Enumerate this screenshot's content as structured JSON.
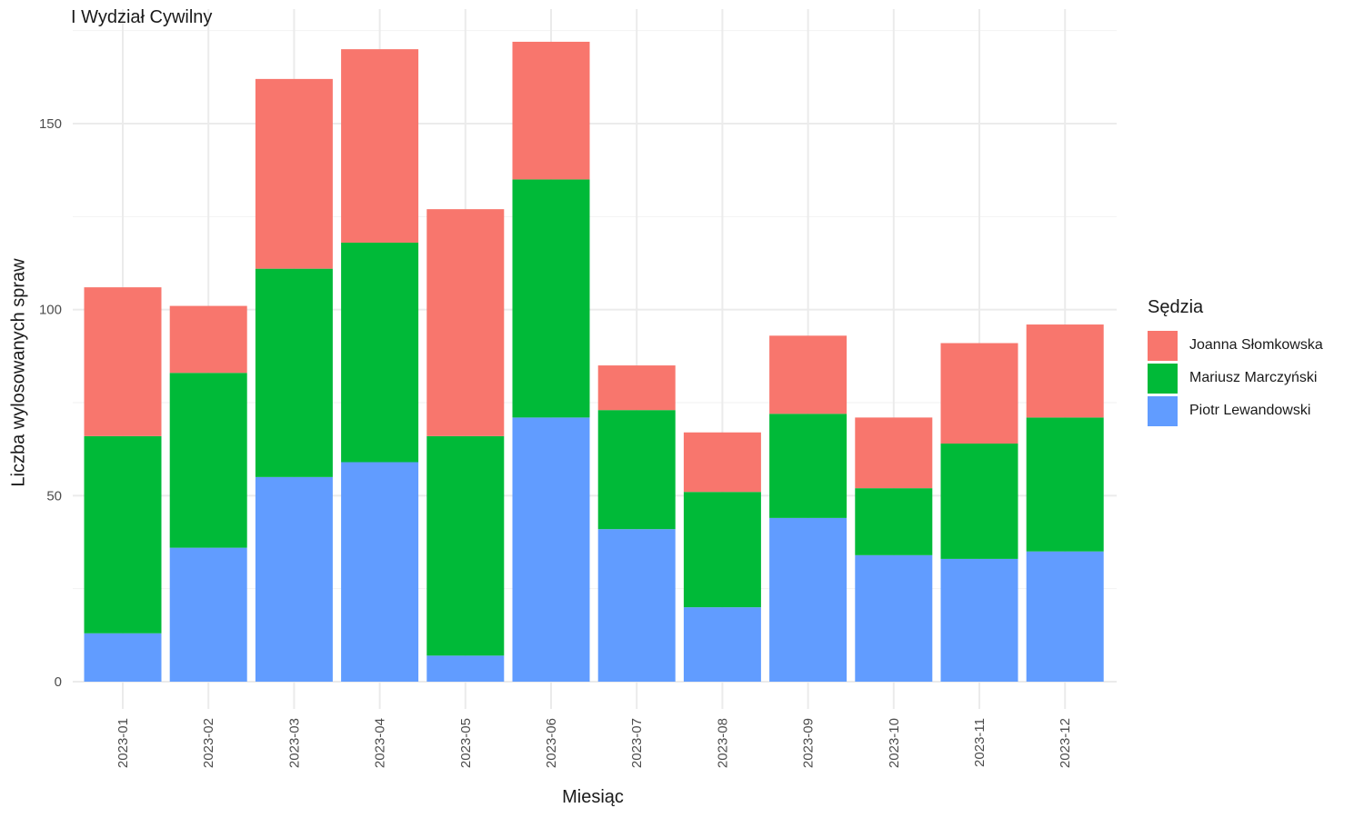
{
  "chart_data": {
    "type": "bar",
    "stacked": true,
    "title": "I Wydział Cywilny",
    "xlabel": "Miesiąc",
    "ylabel": "Liczba wylosowanych spraw",
    "ylim": [
      0,
      175
    ],
    "yticks": [
      0,
      50,
      100,
      150
    ],
    "grid": true,
    "legend_title": "Sędzia",
    "legend_position": "right",
    "categories": [
      "2023-01",
      "2023-02",
      "2023-03",
      "2023-04",
      "2023-05",
      "2023-06",
      "2023-07",
      "2023-08",
      "2023-09",
      "2023-10",
      "2023-11",
      "2023-12"
    ],
    "series": [
      {
        "name": "Piotr Lewandowski",
        "color": "#619CFF",
        "values": [
          13,
          36,
          55,
          59,
          7,
          71,
          41,
          20,
          44,
          34,
          33,
          35
        ]
      },
      {
        "name": "Mariusz Marczyński",
        "color": "#00BA38",
        "values": [
          53,
          47,
          56,
          59,
          59,
          64,
          32,
          31,
          28,
          18,
          31,
          36
        ]
      },
      {
        "name": "Joanna Słomkowska",
        "color": "#F8766D",
        "values": [
          40,
          18,
          51,
          52,
          61,
          37,
          12,
          16,
          21,
          19,
          27,
          25
        ]
      }
    ],
    "legend_order": [
      "Joanna Słomkowska",
      "Mariusz Marczyński",
      "Piotr Lewandowski"
    ]
  }
}
